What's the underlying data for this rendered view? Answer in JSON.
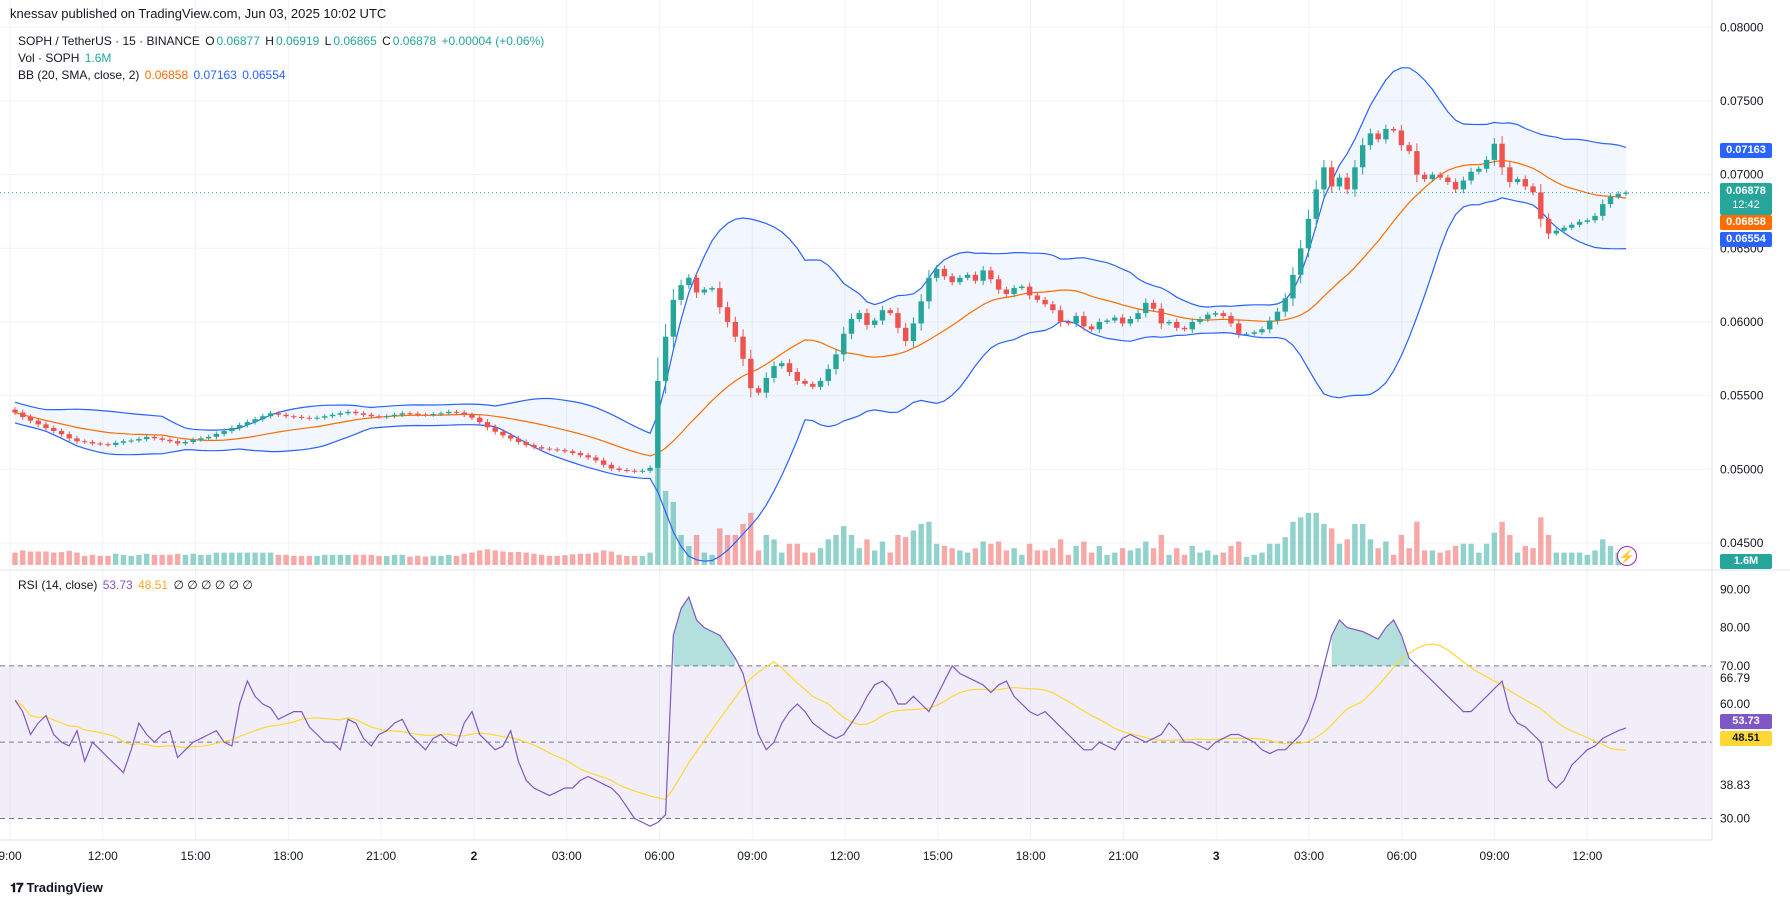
{
  "header": {
    "publisher": "knessav published on TradingView.com, Jun 03, 2025 10:02 UTC"
  },
  "legend": {
    "symbol": "SOPH / TetherUS · 15 · BINANCE",
    "o_label": "O",
    "o_value": "0.06877",
    "h_label": "H",
    "h_value": "0.06919",
    "l_label": "L",
    "l_value": "0.06865",
    "c_label": "C",
    "c_value": "0.06878",
    "change": "+0.00004 (+0.06%)",
    "vol_label": "Vol · SOPH",
    "vol_value": "1.6M",
    "bb_label": "BB (20, SMA, close, 2)",
    "bb_basis": "0.06858",
    "bb_upper": "0.07163",
    "bb_lower": "0.06554",
    "rsi_label": "RSI (14, close)",
    "rsi_value": "53.73",
    "rsi_ma": "48.51",
    "rsi_extra": "∅ ∅ ∅ ∅ ∅ ∅"
  },
  "badges": {
    "upper": "0.07163",
    "price": "0.06878",
    "countdown": "12:42",
    "basis": "0.06858",
    "lower": "0.06554",
    "volume": "1.6M",
    "rsi": "53.73",
    "rsi_ma": "48.51"
  },
  "colors": {
    "up": "#26a69a",
    "down": "#ef5350",
    "bb_band": "#2962ff",
    "bb_basis": "#ff6d00",
    "rsi_line": "#7e57c2",
    "rsi_ma": "#fdd835"
  },
  "footer": {
    "brand": "TradingView"
  },
  "chart_data": [
    {
      "type": "candlestick",
      "title": "SOPH / TetherUS · 15 · BINANCE",
      "ylim": [
        0.0435,
        0.0805
      ],
      "y_ticks": [
        "0.08000",
        "0.07500",
        "0.07000",
        "0.06500",
        "0.06000",
        "0.05500",
        "0.05000",
        "0.04500"
      ],
      "y_tick_values": [
        0.08,
        0.075,
        0.07,
        0.065,
        0.06,
        0.055,
        0.05,
        0.045
      ],
      "x_ticks": [
        "9:00",
        "12:00",
        "15:00",
        "18:00",
        "21:00",
        "2",
        "03:00",
        "06:00",
        "09:00",
        "12:00",
        "15:00",
        "18:00",
        "21:00",
        "3",
        "03:00",
        "06:00",
        "09:00",
        "12:00"
      ],
      "x_tick_hours": [
        0,
        3,
        6,
        9,
        12,
        15,
        18,
        21,
        24,
        27,
        30,
        33,
        36,
        39,
        42,
        45,
        48,
        51
      ],
      "close": [
        0.05385,
        0.05355,
        0.0533,
        0.05305,
        0.0528,
        0.0526,
        0.05238,
        0.0521,
        0.0519,
        0.05185,
        0.05175,
        0.0517,
        0.05165,
        0.0518,
        0.0519,
        0.05195,
        0.05205,
        0.0522,
        0.0521,
        0.052,
        0.0519,
        0.05175,
        0.05185,
        0.052,
        0.0521,
        0.0522,
        0.0524,
        0.0526,
        0.0528,
        0.053,
        0.0532,
        0.0534,
        0.0536,
        0.0538,
        0.0537,
        0.0536,
        0.05355,
        0.0535,
        0.05345,
        0.0535,
        0.0536,
        0.0537,
        0.0538,
        0.0539,
        0.0538,
        0.0537,
        0.0536,
        0.05355,
        0.0536,
        0.0537,
        0.0538,
        0.05378,
        0.05372,
        0.0537,
        0.05375,
        0.0538,
        0.0539,
        0.05385,
        0.0537,
        0.0535,
        0.0532,
        0.05285,
        0.05255,
        0.0523,
        0.05208,
        0.05185,
        0.05165,
        0.0515,
        0.0514,
        0.05135,
        0.0513,
        0.05122,
        0.0511,
        0.05095,
        0.0508,
        0.0506,
        0.0503,
        0.05005,
        0.04995,
        0.0499,
        0.04985,
        0.0499,
        0.0501,
        0.056,
        0.059,
        0.0615,
        0.0625,
        0.063,
        0.062,
        0.0622,
        0.0623,
        0.061,
        0.06,
        0.059,
        0.0575,
        0.0555,
        0.0552,
        0.0562,
        0.057,
        0.0572,
        0.0566,
        0.056,
        0.0558,
        0.0556,
        0.056,
        0.0568,
        0.0578,
        0.0592,
        0.0602,
        0.0606,
        0.0598,
        0.0601,
        0.0608,
        0.0606,
        0.0596,
        0.0587,
        0.0599,
        0.0614,
        0.063,
        0.0636,
        0.0631,
        0.0627,
        0.063,
        0.0632,
        0.0628,
        0.0635,
        0.0629,
        0.0622,
        0.0619,
        0.0623,
        0.0624,
        0.0618,
        0.0615,
        0.0612,
        0.0608,
        0.06,
        0.0599,
        0.0604,
        0.0597,
        0.0595,
        0.06,
        0.0601,
        0.0603,
        0.0599,
        0.0602,
        0.0606,
        0.0613,
        0.0609,
        0.0599,
        0.06,
        0.0596,
        0.0595,
        0.06,
        0.0602,
        0.0605,
        0.0606,
        0.0604,
        0.0599,
        0.0592,
        0.0592,
        0.0593,
        0.0595,
        0.0601,
        0.0607,
        0.0616,
        0.0632,
        0.065,
        0.067,
        0.069,
        0.0705,
        0.0692,
        0.0698,
        0.069,
        0.0705,
        0.072,
        0.0728,
        0.0724,
        0.0731,
        0.073,
        0.072,
        0.0716,
        0.07,
        0.0697,
        0.07,
        0.0698,
        0.0695,
        0.069,
        0.0696,
        0.0702,
        0.0704,
        0.071,
        0.0721,
        0.0705,
        0.0695,
        0.0697,
        0.0692,
        0.0688,
        0.067,
        0.066,
        0.0662,
        0.0664,
        0.0666,
        0.0668,
        0.0669,
        0.0672,
        0.068,
        0.0685,
        0.0687,
        0.06878
      ],
      "bb_basis_last": 0.06858,
      "bb_upper_last": 0.07163,
      "bb_lower_last": 0.06554
    },
    {
      "type": "bar",
      "title": "Vol · SOPH",
      "last": "1.6M"
    },
    {
      "type": "line",
      "title": "RSI (14, close)",
      "ylim": [
        27,
        93
      ],
      "y_ticks": [
        "90.00",
        "80.00",
        "70.00",
        "66.79",
        "60.00",
        "38.83",
        "30.00"
      ],
      "y_tick_values": [
        90,
        80,
        70,
        66.79,
        60,
        38.83,
        30
      ],
      "bands": [
        30,
        50,
        70
      ],
      "rsi": [
        61,
        58,
        52,
        55,
        57,
        52,
        50,
        49,
        53,
        45,
        50,
        48,
        46,
        44,
        42,
        48,
        55,
        52,
        50,
        52,
        53,
        46,
        48,
        50,
        51,
        52,
        53,
        50,
        49,
        60,
        66,
        62,
        60,
        59,
        56,
        58,
        58,
        54,
        52,
        50,
        50,
        48,
        56,
        55,
        51,
        49,
        52,
        53,
        55,
        56,
        52,
        50,
        48,
        51,
        52,
        50,
        49,
        55,
        58,
        52,
        50,
        48,
        49,
        53,
        45,
        40,
        38,
        37,
        36,
        37,
        38,
        38,
        40,
        41,
        40,
        39,
        38,
        36,
        33,
        30,
        29,
        28,
        29,
        31,
        78,
        85,
        88,
        82,
        80,
        79,
        78,
        75,
        72,
        68,
        60,
        52,
        48,
        50,
        55,
        58,
        60,
        58,
        55,
        52,
        51,
        52,
        55,
        58,
        62,
        65,
        66,
        64,
        60,
        60,
        62,
        60,
        58,
        62,
        66,
        70,
        68,
        67,
        66,
        65,
        63,
        65,
        66,
        62,
        60,
        58,
        57,
        58,
        56,
        54,
        52,
        50,
        48,
        48,
        50,
        49,
        48,
        51,
        52,
        51,
        50,
        51,
        52,
        55,
        53,
        50,
        50,
        49,
        48,
        50,
        51,
        52,
        52,
        51,
        50,
        48,
        47,
        48,
        48,
        50,
        52,
        56,
        62,
        70,
        78,
        82,
        80,
        79,
        78,
        77,
        80,
        82,
        78,
        72,
        70,
        68,
        66,
        64,
        62,
        60,
        58,
        58,
        60,
        62,
        64,
        66,
        58,
        55,
        54,
        52,
        50,
        40,
        38,
        40,
        44,
        46,
        48,
        49,
        51,
        52,
        53,
        53.73
      ],
      "rsi_ma_last": 48.51
    }
  ]
}
